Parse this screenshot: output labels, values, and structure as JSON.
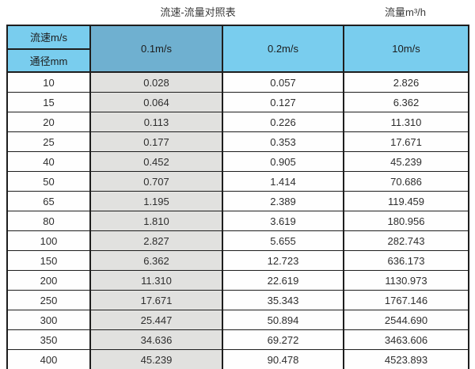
{
  "page": {
    "title_left": "流速-流量对照表",
    "title_right": "流量m³/h"
  },
  "colors": {
    "header_blue": "#79cdee",
    "header_blue_selected": "#6fb0d0",
    "highlight_column_gray": "#e1e1df",
    "border": "#1e1e1e",
    "text": "#2e2e2e"
  },
  "chart_data": {
    "type": "table",
    "title": "流速-流量对照表",
    "unit_label": "流量m³/h",
    "corner_top": "流速m/s",
    "corner_bottom": "通径mm",
    "velocity_columns": [
      "0.1m/s",
      "0.2m/s",
      "10m/s"
    ],
    "highlighted_column": "0.1m/s",
    "rows": [
      {
        "diameter": "10",
        "v": [
          "0.028",
          "0.057",
          "2.826"
        ]
      },
      {
        "diameter": "15",
        "v": [
          "0.064",
          "0.127",
          "6.362"
        ]
      },
      {
        "diameter": "20",
        "v": [
          "0.113",
          "0.226",
          "11.310"
        ]
      },
      {
        "diameter": "25",
        "v": [
          "0.177",
          "0.353",
          "17.671"
        ]
      },
      {
        "diameter": "40",
        "v": [
          "0.452",
          "0.905",
          "45.239"
        ]
      },
      {
        "diameter": "50",
        "v": [
          "0.707",
          "1.414",
          "70.686"
        ]
      },
      {
        "diameter": "65",
        "v": [
          "1.195",
          "2.389",
          "119.459"
        ]
      },
      {
        "diameter": "80",
        "v": [
          "1.810",
          "3.619",
          "180.956"
        ]
      },
      {
        "diameter": "100",
        "v": [
          "2.827",
          "5.655",
          "282.743"
        ]
      },
      {
        "diameter": "150",
        "v": [
          "6.362",
          "12.723",
          "636.173"
        ]
      },
      {
        "diameter": "200",
        "v": [
          "11.310",
          "22.619",
          "1130.973"
        ]
      },
      {
        "diameter": "250",
        "v": [
          "17.671",
          "35.343",
          "1767.146"
        ]
      },
      {
        "diameter": "300",
        "v": [
          "25.447",
          "50.894",
          "2544.690"
        ]
      },
      {
        "diameter": "350",
        "v": [
          "34.636",
          "69.272",
          "3463.606"
        ]
      },
      {
        "diameter": "400",
        "v": [
          "45.239",
          "90.478",
          "4523.893"
        ]
      }
    ]
  }
}
